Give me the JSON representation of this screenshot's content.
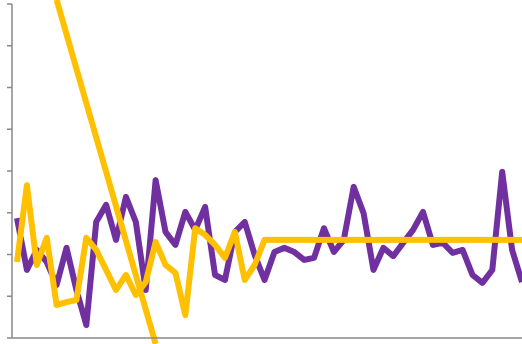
{
  "chart_data": {
    "type": "line",
    "x": [
      0,
      1,
      2,
      3,
      4,
      5,
      6,
      7,
      8,
      9,
      10,
      11,
      12,
      13,
      14,
      15,
      16,
      17,
      18,
      19,
      20,
      21,
      22,
      23,
      24,
      25,
      26,
      27,
      28,
      29,
      30,
      31,
      32,
      33,
      34,
      35,
      36,
      37,
      38,
      39,
      40,
      41,
      42,
      43,
      44,
      45,
      46,
      47,
      48,
      49,
      50,
      51
    ],
    "xlim": [
      0,
      51
    ],
    "ylim": [
      0,
      8
    ],
    "yticks": [
      0,
      1,
      2,
      3,
      4,
      5,
      6,
      7,
      8
    ],
    "series": [
      {
        "color": "#7030a0",
        "values": [
          2.87,
          1.63,
          2.11,
          1.82,
          1.27,
          2.16,
          1.15,
          0.31,
          2.78,
          3.19,
          2.35,
          3.38,
          2.78,
          1.15,
          3.78,
          2.54,
          2.23,
          3.02,
          2.59,
          3.14,
          1.51,
          1.39,
          2.54,
          2.78,
          1.99,
          1.39,
          2.06,
          2.16,
          2.06,
          1.87,
          1.92,
          2.63,
          2.06,
          2.35,
          3.62,
          2.99,
          1.63,
          2.16,
          1.96,
          2.28,
          2.59,
          3.02,
          2.23,
          2.28,
          2.04,
          2.11,
          1.51,
          1.32,
          1.63,
          3.98,
          2.11,
          1.34
        ]
      },
      {
        "color": "#ffc000",
        "values": [
          1.82,
          3.66,
          1.75,
          2.4,
          0.79,
          0.86,
          0.91,
          2.4,
          2.11,
          1.63,
          1.15,
          1.51,
          1.03,
          1.34,
          2.3,
          1.75,
          1.56,
          0.55,
          2.63,
          2.47,
          2.23,
          1.92,
          2.54,
          1.39,
          1.75,
          2.35,
          2.35,
          2.35,
          2.35,
          2.35,
          2.35,
          2.35,
          2.35,
          2.35,
          2.35,
          2.35,
          2.35,
          2.35,
          2.35,
          2.35,
          2.35,
          2.35,
          2.35,
          2.35,
          2.35,
          2.35,
          2.35,
          2.35,
          2.35,
          2.35,
          2.35,
          2.35
        ]
      },
      {
        "color": "#ffc000",
        "x": [
          4,
          14
        ],
        "values": [
          8.1,
          -0.14
        ]
      }
    ]
  }
}
